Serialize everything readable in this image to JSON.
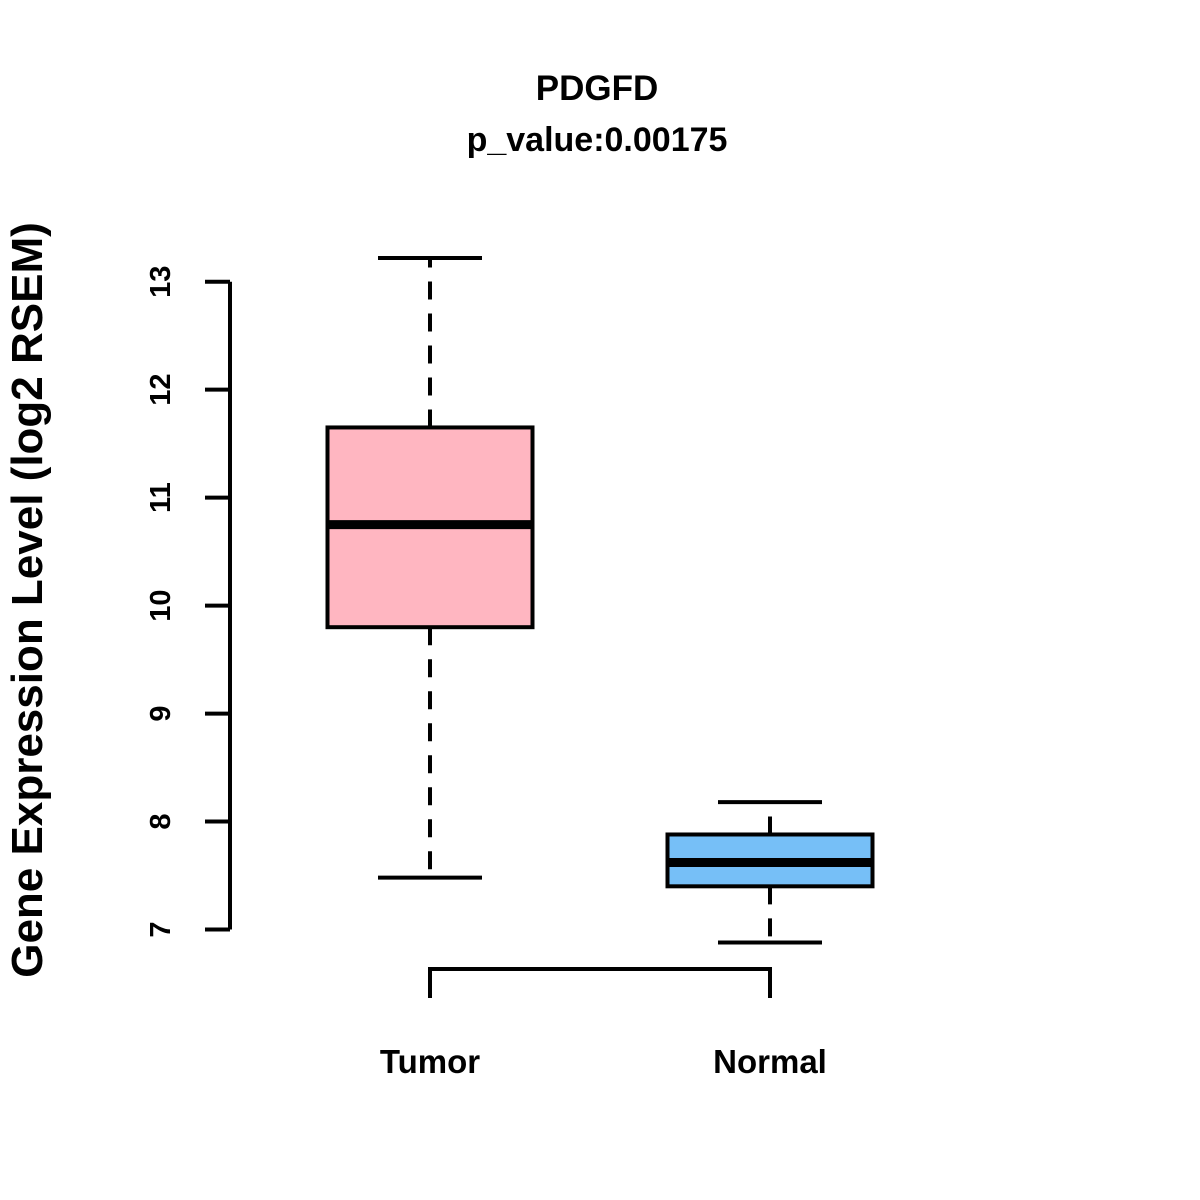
{
  "figure": {
    "background": "#FFFFFF",
    "line_color": "#000000"
  },
  "chart_data": {
    "type": "boxplot",
    "title": "PDGFD",
    "subtitle": "p_value:0.00175",
    "ylabel": "Gene Expression Level (log2 RSEM)",
    "xlabel": "",
    "ylim": [
      7,
      13.25
    ],
    "yticks": [
      7,
      8,
      9,
      10,
      11,
      12,
      13
    ],
    "grid": false,
    "legend": "none",
    "categories": [
      "Tumor",
      "Normal"
    ],
    "series": [
      {
        "name": "Tumor",
        "fill_color": "#FFB6C1",
        "border_color": "#000000",
        "whisker_low": 7.48,
        "q1": 9.8,
        "median": 10.75,
        "q3": 11.65,
        "whisker_high": 13.22
      },
      {
        "name": "Normal",
        "fill_color": "#76BFF7",
        "border_color": "#000000",
        "whisker_low": 6.88,
        "q1": 7.4,
        "median": 7.62,
        "q3": 7.88,
        "whisker_high": 8.18
      }
    ]
  }
}
